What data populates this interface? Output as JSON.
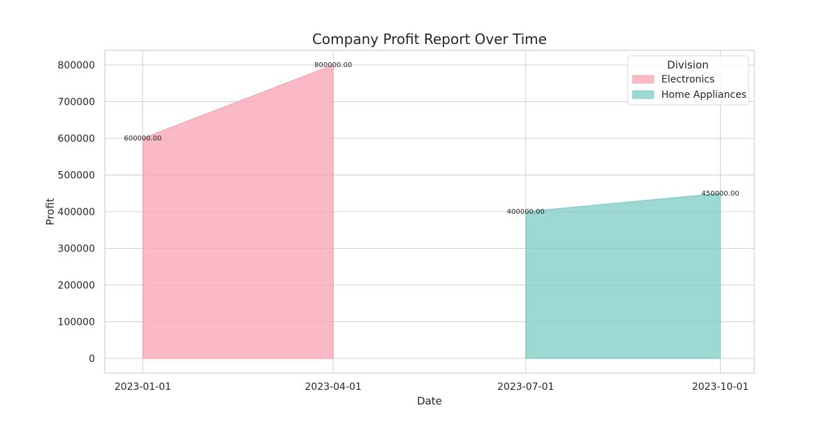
{
  "chart_data": {
    "type": "area",
    "title": "Company Profit Report Over Time",
    "xlabel": "Date",
    "ylabel": "Profit",
    "x_type": "date",
    "x_ticks": [
      "2023-01-01",
      "2023-04-01",
      "2023-07-01",
      "2023-10-01"
    ],
    "xlim": [
      "2022-12-14",
      "2023-10-17"
    ],
    "y_ticks": [
      0,
      100000,
      200000,
      300000,
      400000,
      500000,
      600000,
      700000,
      800000
    ],
    "ylim": [
      -40000,
      840000
    ],
    "grid": true,
    "legend": {
      "title": "Division",
      "placement": "top-right"
    },
    "series": [
      {
        "name": "Electronics",
        "color": "#f7a1b2",
        "points": [
          {
            "x": "2023-01-01",
            "y": 600000,
            "label": "600000.00"
          },
          {
            "x": "2023-04-01",
            "y": 800000,
            "label": "800000.00"
          }
        ]
      },
      {
        "name": "Home Appliances",
        "color": "#7ecbc4",
        "points": [
          {
            "x": "2023-07-01",
            "y": 400000,
            "label": "400000.00"
          },
          {
            "x": "2023-10-01",
            "y": 450000,
            "label": "450000.00"
          }
        ]
      }
    ]
  }
}
